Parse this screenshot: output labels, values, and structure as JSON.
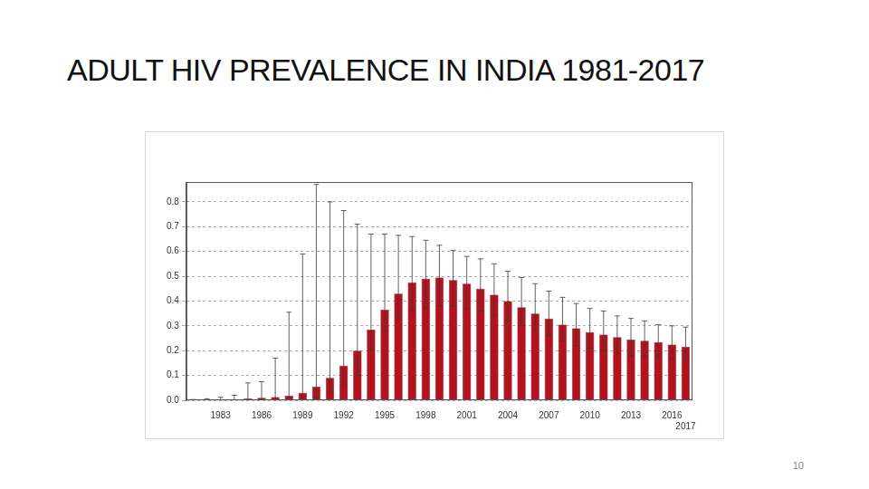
{
  "chart_data": {
    "type": "bar",
    "title": "ADULT HIV PREVALENCE IN INDIA 1981-2017",
    "categories": [
      null,
      null,
      "1983",
      null,
      null,
      "1986",
      null,
      null,
      "1989",
      null,
      null,
      "1992",
      null,
      null,
      "1995",
      null,
      null,
      "1998",
      null,
      null,
      "2001",
      null,
      null,
      "2004",
      null,
      null,
      "2007",
      null,
      null,
      "2010",
      null,
      null,
      "2013",
      null,
      null,
      "2016",
      "2017"
    ],
    "values": [
      0.001,
      0.002,
      0.003,
      0.005,
      0.007,
      0.01,
      0.013,
      0.018,
      0.03,
      0.055,
      0.09,
      0.14,
      0.2,
      0.285,
      0.365,
      0.43,
      0.475,
      0.49,
      0.495,
      0.485,
      0.47,
      0.45,
      0.425,
      0.4,
      0.375,
      0.35,
      0.33,
      0.305,
      0.29,
      0.275,
      0.265,
      0.255,
      0.245,
      0.24,
      0.235,
      0.225,
      0.215
    ],
    "error_low": [
      0,
      0,
      0,
      0,
      0,
      0,
      0,
      0,
      0,
      0.01,
      0.03,
      0.06,
      0.1,
      0.2,
      0.28,
      0.33,
      0.36,
      0.37,
      0.38,
      0.38,
      0.37,
      0.36,
      0.34,
      0.32,
      0.3,
      0.28,
      0.26,
      0.24,
      0.22,
      0.21,
      0.2,
      0.19,
      0.18,
      0.175,
      0.17,
      0.165,
      0.16
    ],
    "error_high": [
      0.003,
      0.006,
      0.012,
      0.02,
      0.07,
      0.075,
      0.17,
      0.355,
      0.59,
      0.87,
      0.8,
      0.765,
      0.71,
      0.67,
      0.67,
      0.665,
      0.66,
      0.645,
      0.625,
      0.605,
      0.58,
      0.57,
      0.55,
      0.52,
      0.495,
      0.47,
      0.44,
      0.415,
      0.39,
      0.37,
      0.36,
      0.34,
      0.33,
      0.32,
      0.305,
      0.3,
      0.295
    ],
    "color": "#b3121f",
    "ylim": [
      0,
      0.88
    ],
    "yticks": [
      {
        "value": 0,
        "label": "0.0"
      },
      0.1,
      0.2,
      0.3,
      0.4,
      0.5,
      0.6,
      0.7,
      0.8
    ],
    "grid": true
  },
  "slide": {
    "page_number": "10"
  }
}
